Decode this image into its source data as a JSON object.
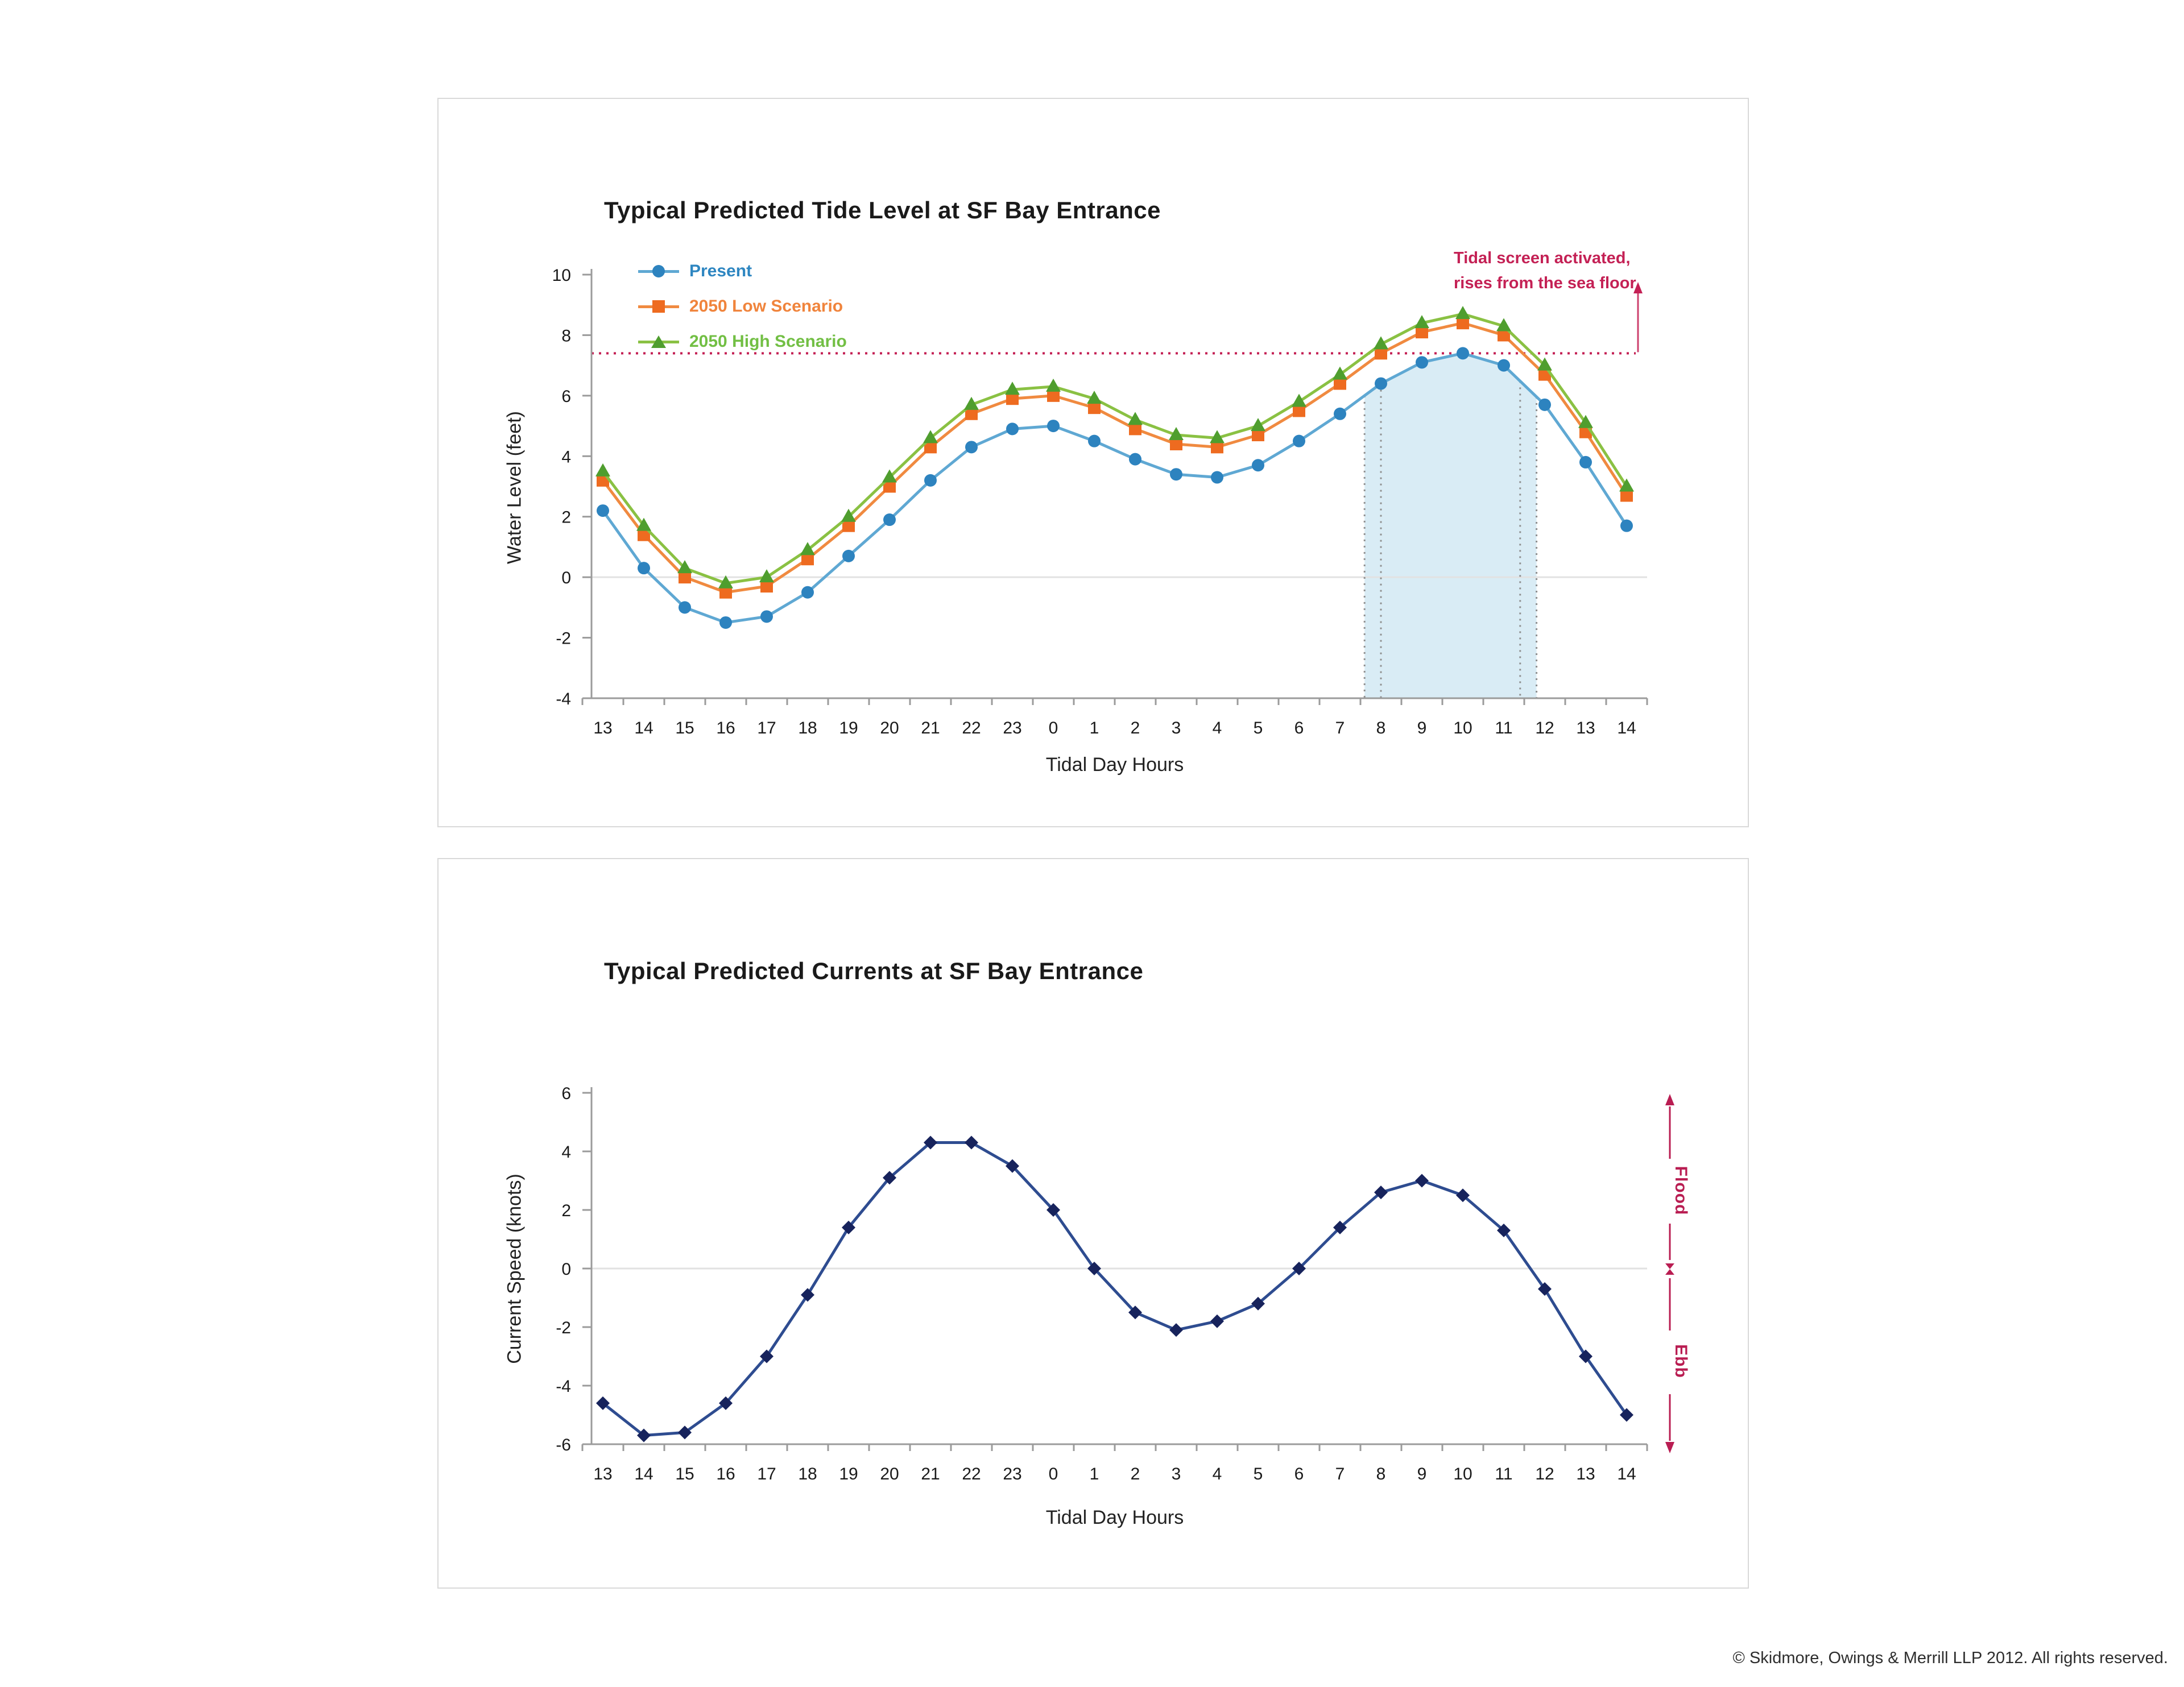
{
  "chart_data": [
    {
      "type": "line",
      "title": "Typical Predicted Tide Level at SF Bay Entrance",
      "xlabel": "Tidal Day Hours",
      "ylabel": "Water Level (feet)",
      "x_categories": [
        "13",
        "14",
        "15",
        "16",
        "17",
        "18",
        "19",
        "20",
        "21",
        "22",
        "23",
        "0",
        "1",
        "2",
        "3",
        "4",
        "5",
        "6",
        "7",
        "8",
        "9",
        "10",
        "11",
        "12",
        "13",
        "14"
      ],
      "ylim": [
        -4,
        10
      ],
      "y_ticks": [
        10,
        8,
        6,
        4,
        2,
        0,
        -2,
        -4
      ],
      "grid": "zero-line-only",
      "legend_position": "top-left-inside",
      "series": [
        {
          "name": "Present",
          "marker": "circle",
          "color": "#2d83bf",
          "line_color": "#5fa8d3",
          "values": [
            2.2,
            0.3,
            -1.0,
            -1.5,
            -1.3,
            -0.5,
            0.7,
            1.9,
            3.2,
            4.3,
            4.9,
            5.0,
            4.5,
            3.9,
            3.4,
            3.3,
            3.7,
            4.5,
            5.4,
            6.4,
            7.1,
            7.4,
            7.0,
            5.7,
            3.8,
            1.7
          ]
        },
        {
          "name": "2050 Low Scenario",
          "marker": "square",
          "color": "#ee6b20",
          "line_color": "#f08a40",
          "values": [
            3.2,
            1.4,
            0.0,
            -0.5,
            -0.3,
            0.6,
            1.7,
            3.0,
            4.3,
            5.4,
            5.9,
            6.0,
            5.6,
            4.9,
            4.4,
            4.3,
            4.7,
            5.5,
            6.4,
            7.4,
            8.1,
            8.4,
            8.0,
            6.7,
            4.8,
            2.7
          ]
        },
        {
          "name": "2050 High Scenario",
          "marker": "triangle",
          "color": "#4f9e2e",
          "line_color": "#8ac143",
          "values": [
            3.5,
            1.7,
            0.3,
            -0.2,
            0.0,
            0.9,
            2.0,
            3.3,
            4.6,
            5.7,
            6.2,
            6.3,
            5.9,
            5.2,
            4.7,
            4.6,
            5.0,
            5.8,
            6.7,
            7.7,
            8.4,
            8.7,
            8.3,
            7.0,
            5.1,
            3.0
          ]
        }
      ],
      "threshold_line": {
        "value": 7.4,
        "style": "dotted",
        "color": "#c42155"
      },
      "annotation": {
        "text_line1": "Tidal screen activated,",
        "text_line2": "rises from the sea floor.",
        "color": "#c42155"
      },
      "shaded_region": {
        "x_from_hour_index": 18.6,
        "x_to_hour_index": 22.8,
        "fill": "#d9ecf5",
        "dotted_boundaries_hour_index": [
          18.6,
          19.0,
          22.4,
          22.8
        ],
        "boundary_color": "#8f8f8f"
      }
    },
    {
      "type": "line",
      "title": "Typical Predicted Currents at SF Bay Entrance",
      "xlabel": "Tidal Day Hours",
      "ylabel": "Current Speed (knots)",
      "x_categories": [
        "13",
        "14",
        "15",
        "16",
        "17",
        "18",
        "19",
        "20",
        "21",
        "22",
        "23",
        "0",
        "1",
        "2",
        "3",
        "4",
        "5",
        "6",
        "7",
        "8",
        "9",
        "10",
        "11",
        "12",
        "13",
        "14"
      ],
      "ylim": [
        -6,
        6
      ],
      "y_ticks": [
        6,
        4,
        2,
        0,
        -2,
        -4,
        -6
      ],
      "grid": "zero-line-only",
      "series": [
        {
          "name": "Current Speed",
          "marker": "diamond",
          "color": "#17235c",
          "line_color": "#2e4c90",
          "values": [
            -4.6,
            -5.7,
            -5.6,
            -4.6,
            -3.0,
            -0.9,
            1.4,
            3.1,
            4.3,
            4.3,
            3.5,
            2.0,
            0.0,
            -1.5,
            -2.1,
            -1.8,
            -1.2,
            0.0,
            1.4,
            2.6,
            3.0,
            2.5,
            1.3,
            -0.7,
            -3.0,
            -5.0
          ]
        }
      ],
      "flood_ebb_axis": {
        "flood_label": "Flood",
        "ebb_label": "Ebb",
        "color": "#b91d52"
      }
    }
  ],
  "footer": {
    "copyright": "© Skidmore, Owings & Merrill LLP 2012. All rights reserved."
  }
}
